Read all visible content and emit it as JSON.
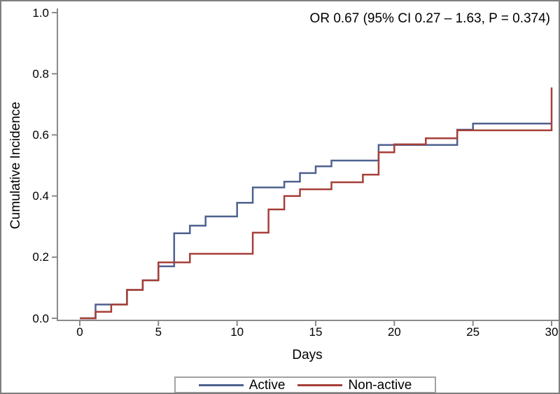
{
  "annotation": {
    "text": "OR 0.67 (95% CI 0.27 – 1.63, P = 0.374)"
  },
  "axes": {
    "y_label": "Cumulative Incidence",
    "x_label": "Days",
    "y_ticks": [
      "1.0",
      "0.8",
      "0.6",
      "0.4",
      "0.2",
      "0.0"
    ],
    "x_ticks": [
      "0",
      "5",
      "10",
      "15",
      "20",
      "25",
      "30"
    ]
  },
  "legend": {
    "items": [
      {
        "label": "Active",
        "color": "#4e618f"
      },
      {
        "label": "Non-active",
        "color": "#a63f38"
      }
    ]
  },
  "colors": {
    "active": "#4e618f",
    "non_active": "#a63f38",
    "axis": "#8a8a8a",
    "legend_border": "#a3a3a3"
  },
  "chart_data": {
    "type": "line",
    "subtype": "step-cumulative-incidence",
    "title": "",
    "xlabel": "Days",
    "ylabel": "Cumulative Incidence",
    "xlim": [
      0,
      30
    ],
    "ylim": [
      0.0,
      1.0
    ],
    "x_ticks": [
      0,
      5,
      10,
      15,
      20,
      25,
      30
    ],
    "y_ticks": [
      0.0,
      0.2,
      0.4,
      0.6,
      0.8,
      1.0
    ],
    "grid": false,
    "legend_position": "bottom",
    "annotation": "OR 0.67 (95% CI 0.27 – 1.63, P = 0.374)",
    "series": [
      {
        "name": "Active",
        "color": "#4e618f",
        "end_x": 30,
        "steps": [
          [
            0,
            0
          ],
          [
            1,
            0.045
          ],
          [
            3,
            0.093
          ],
          [
            4,
            0.124
          ],
          [
            5,
            0.17
          ],
          [
            6,
            0.278
          ],
          [
            7,
            0.303
          ],
          [
            8,
            0.333
          ],
          [
            10,
            0.378
          ],
          [
            11,
            0.428
          ],
          [
            13,
            0.447
          ],
          [
            14,
            0.475
          ],
          [
            15,
            0.497
          ],
          [
            16,
            0.516
          ],
          [
            19,
            0.567
          ],
          [
            24,
            0.617
          ],
          [
            25,
            0.637
          ]
        ]
      },
      {
        "name": "Non-active",
        "color": "#a63f38",
        "end_x": 30,
        "steps": [
          [
            0,
            0
          ],
          [
            1,
            0.021
          ],
          [
            2,
            0.045
          ],
          [
            3,
            0.093
          ],
          [
            4,
            0.124
          ],
          [
            5,
            0.183
          ],
          [
            7,
            0.211
          ],
          [
            11,
            0.28
          ],
          [
            12,
            0.356
          ],
          [
            13,
            0.4
          ],
          [
            14,
            0.422
          ],
          [
            16,
            0.445
          ],
          [
            18,
            0.47
          ],
          [
            19,
            0.543
          ],
          [
            20,
            0.569
          ],
          [
            22,
            0.589
          ],
          [
            24,
            0.615
          ],
          [
            30,
            0.755
          ]
        ]
      }
    ]
  }
}
